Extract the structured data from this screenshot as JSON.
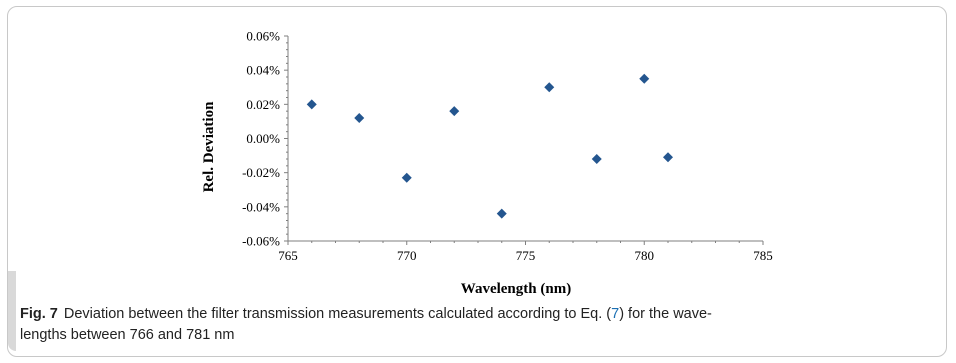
{
  "chart_data": {
    "type": "scatter",
    "xlabel": "Wavelength (nm)",
    "ylabel": "Rel. Deviation",
    "xlim": [
      765,
      785
    ],
    "ylim": [
      -0.06,
      0.06
    ],
    "x_ticks": [
      "765",
      "770",
      "775",
      "780",
      "785"
    ],
    "y_ticks": [
      "0.06%",
      "0.04%",
      "0.02%",
      "0.00%",
      "-0.02%",
      "-0.04%",
      "-0.06%"
    ],
    "marker": "diamond",
    "marker_color": "#24568f",
    "grid": false,
    "series": [
      {
        "points": [
          {
            "x": 766,
            "y": 0.02
          },
          {
            "x": 768,
            "y": 0.012
          },
          {
            "x": 770,
            "y": -0.023
          },
          {
            "x": 772,
            "y": 0.016
          },
          {
            "x": 774,
            "y": -0.044
          },
          {
            "x": 776,
            "y": 0.03
          },
          {
            "x": 778,
            "y": -0.012
          },
          {
            "x": 780,
            "y": 0.035
          },
          {
            "x": 781,
            "y": -0.011
          }
        ]
      }
    ]
  },
  "caption": {
    "label": "Fig. 7",
    "text_before": "Deviation between the filter transmission measurements calculated according to Eq. (",
    "ref": "7",
    "text_after": ") for the wave-",
    "line2": "lengths between 766 and 781 nm"
  }
}
